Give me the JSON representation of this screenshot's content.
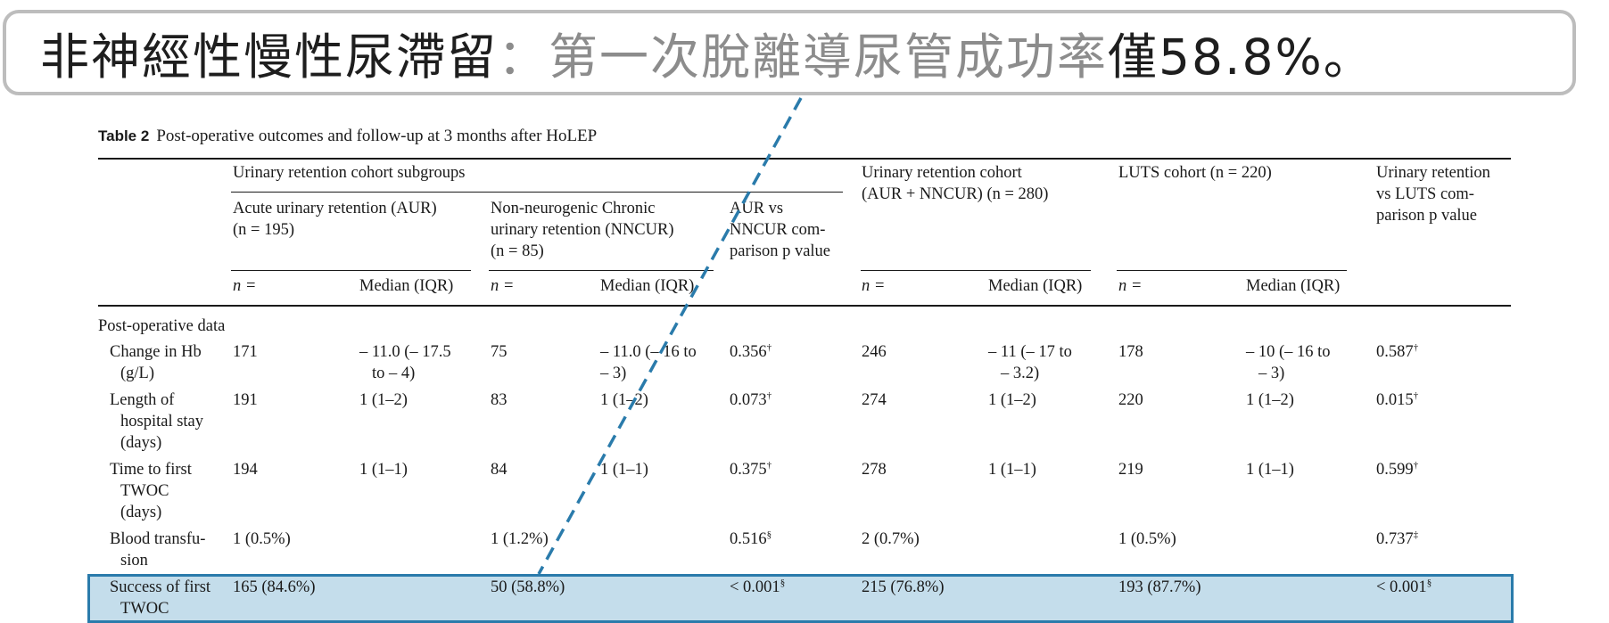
{
  "callout": {
    "part1": "非神經性慢性尿滯留",
    "part2": "：第一次脫離導尿管成功率",
    "part3": "僅58.8%。"
  },
  "caption": {
    "label": "Table 2",
    "text": "Post-operative outcomes and follow-up at 3 months after HoLEP"
  },
  "headers": {
    "group_subgroups": "Urinary retention cohort subgroups",
    "aur": [
      "Acute urinary retention (AUR)",
      "(n = 195)"
    ],
    "nncur": [
      "Non-neurogenic Chronic",
      "urinary retention (NNCUR)",
      "(n = 85)"
    ],
    "aur_vs_nncur": [
      "AUR vs",
      "NNCUR com-",
      "parison p value"
    ],
    "ur_cohort": [
      "Urinary retention cohort",
      "(AUR + NNCUR) (n = 280)"
    ],
    "luts": [
      "LUTS cohort (n = 220)"
    ],
    "ur_vs_luts": [
      "Urinary retention",
      "vs LUTS com-",
      "parison p value"
    ],
    "n_label": "n =",
    "median_label": "Median (IQR)"
  },
  "section": "Post-operative data",
  "rows": [
    {
      "label": [
        "Change in Hb",
        "(g/L)"
      ],
      "aur_n": "171",
      "aur_med": [
        "– 11.0 (– 17.5",
        "to – 4)"
      ],
      "nncur_n": "75",
      "nncur_med": [
        "– 11.0 (– 16 to",
        "– 3)"
      ],
      "p1": "0.356",
      "p1_sup": "†",
      "ur_n": "246",
      "ur_med": [
        "– 11 (– 17 to",
        "– 3.2)"
      ],
      "luts_n": "178",
      "luts_med": [
        "– 10 (– 16 to",
        "– 3)"
      ],
      "p2": "0.587",
      "p2_sup": "†"
    },
    {
      "label": [
        "Length of",
        "hospital stay",
        "(days)"
      ],
      "aur_n": "191",
      "aur_med": [
        "1 (1–2)"
      ],
      "nncur_n": "83",
      "nncur_med": [
        "1 (1–2)"
      ],
      "p1": "0.073",
      "p1_sup": "†",
      "ur_n": "274",
      "ur_med": [
        "1 (1–2)"
      ],
      "luts_n": "220",
      "luts_med": [
        "1 (1–2)"
      ],
      "p2": "0.015",
      "p2_sup": "†"
    },
    {
      "label": [
        "Time to first",
        "TWOC",
        "(days)"
      ],
      "aur_n": "194",
      "aur_med": [
        "1 (1–1)"
      ],
      "nncur_n": "84",
      "nncur_med": [
        "1 (1–1)"
      ],
      "p1": "0.375",
      "p1_sup": "†",
      "ur_n": "278",
      "ur_med": [
        "1 (1–1)"
      ],
      "luts_n": "219",
      "luts_med": [
        "1 (1–1)"
      ],
      "p2": "0.599",
      "p2_sup": "†"
    },
    {
      "label": [
        "Blood transfu-",
        "sion"
      ],
      "aur_n": "1 (0.5%)",
      "aur_med": [
        ""
      ],
      "nncur_n": "1 (1.2%)",
      "nncur_med": [
        ""
      ],
      "p1": "0.516",
      "p1_sup": "§",
      "ur_n": "2 (0.7%)",
      "ur_med": [
        ""
      ],
      "luts_n": "1 (0.5%)",
      "luts_med": [
        ""
      ],
      "p2": "0.737",
      "p2_sup": "‡"
    },
    {
      "label": [
        "Success of first",
        "TWOC"
      ],
      "aur_n": "165 (84.6%)",
      "aur_med": [
        ""
      ],
      "nncur_n": "50 (58.8%)",
      "nncur_med": [
        ""
      ],
      "p1": "< 0.001",
      "p1_sup": "§",
      "ur_n": "215 (76.8%)",
      "ur_med": [
        ""
      ],
      "luts_n": "193 (87.7%)",
      "luts_med": [
        ""
      ],
      "p2": "< 0.001",
      "p2_sup": "§"
    }
  ],
  "colors": {
    "highlight_fill": "#a0c8df",
    "highlight_border": "#2a7bab",
    "pointer_line": "#2a7bab",
    "callout_border": "#bdbdbd"
  },
  "highlight": {
    "row": "Success of first TWOC"
  }
}
